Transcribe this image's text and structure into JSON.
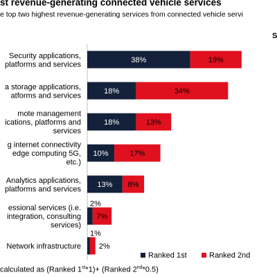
{
  "title": "st revenue-generating connected vehicle services",
  "subtitle": "e top two highest revenue-generating services from connected vehicle servi",
  "corner_label": "S",
  "footnote": {
    "prefix": "calculated as (Ranked 1",
    "sup1": "st",
    "middle": "*1)+ (Ranked 2",
    "sup2": "nd",
    "suffix": "*0.5)"
  },
  "colors": {
    "ranked1": "#13213a",
    "ranked2": "#e0101e"
  },
  "chart_data": {
    "type": "bar",
    "orientation": "horizontal",
    "stacked": true,
    "categories": [
      [
        "Security applications,",
        "platforms and services"
      ],
      [
        "a storage applications,",
        "atforms and services"
      ],
      [
        "mote management",
        "ications, platforms and",
        "services"
      ],
      [
        "g internet connectivity",
        "edge computing 5G,",
        "etc.)"
      ],
      [
        "Analytics applications,",
        "platforms and services"
      ],
      [
        "essional services (i.e.",
        "integration, consulting",
        "services)"
      ],
      [
        "Network infrastructure"
      ]
    ],
    "series": [
      {
        "name": "Ranked 1st",
        "values": [
          38,
          18,
          18,
          10,
          13,
          2,
          1
        ],
        "labels": [
          "38%",
          "18%",
          "18%",
          "10%",
          "13%",
          "2%",
          "1%"
        ]
      },
      {
        "name": "Ranked 2nd",
        "values": [
          19,
          34,
          13,
          17,
          8,
          7,
          2
        ],
        "labels": [
          "19%",
          "34%",
          "13%",
          "17%",
          "8%",
          "7%",
          "2%"
        ]
      }
    ],
    "legend_position": "bottom-right",
    "grid": false
  }
}
